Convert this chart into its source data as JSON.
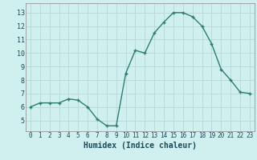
{
  "x": [
    0,
    1,
    2,
    3,
    4,
    5,
    6,
    7,
    8,
    9,
    10,
    11,
    12,
    13,
    14,
    15,
    16,
    17,
    18,
    19,
    20,
    21,
    22,
    23
  ],
  "y": [
    6.0,
    6.3,
    6.3,
    6.3,
    6.6,
    6.5,
    6.0,
    5.1,
    4.6,
    4.6,
    8.5,
    10.2,
    10.0,
    11.5,
    12.3,
    13.0,
    13.0,
    12.7,
    12.0,
    10.7,
    8.8,
    8.0,
    7.1,
    7.0
  ],
  "line_color": "#2e7d6e",
  "marker": "+",
  "markersize": 3,
  "linewidth": 1.0,
  "markeredgewidth": 1.0,
  "bg_color": "#cff0ee",
  "grid_color": "#b8d8d6",
  "xlabel": "Humidex (Indice chaleur)",
  "xlabel_fontsize": 7,
  "ylabel_ticks": [
    5,
    6,
    7,
    8,
    9,
    10,
    11,
    12,
    13
  ],
  "xlim": [
    -0.5,
    23.5
  ],
  "ylim": [
    4.2,
    13.7
  ],
  "xtick_labels": [
    "0",
    "1",
    "2",
    "3",
    "4",
    "5",
    "6",
    "7",
    "8",
    "9",
    "10",
    "11",
    "12",
    "13",
    "14",
    "15",
    "16",
    "17",
    "18",
    "19",
    "20",
    "21",
    "22",
    "23"
  ],
  "tick_fontsize": 5.5,
  "ytick_fontsize": 6.0
}
